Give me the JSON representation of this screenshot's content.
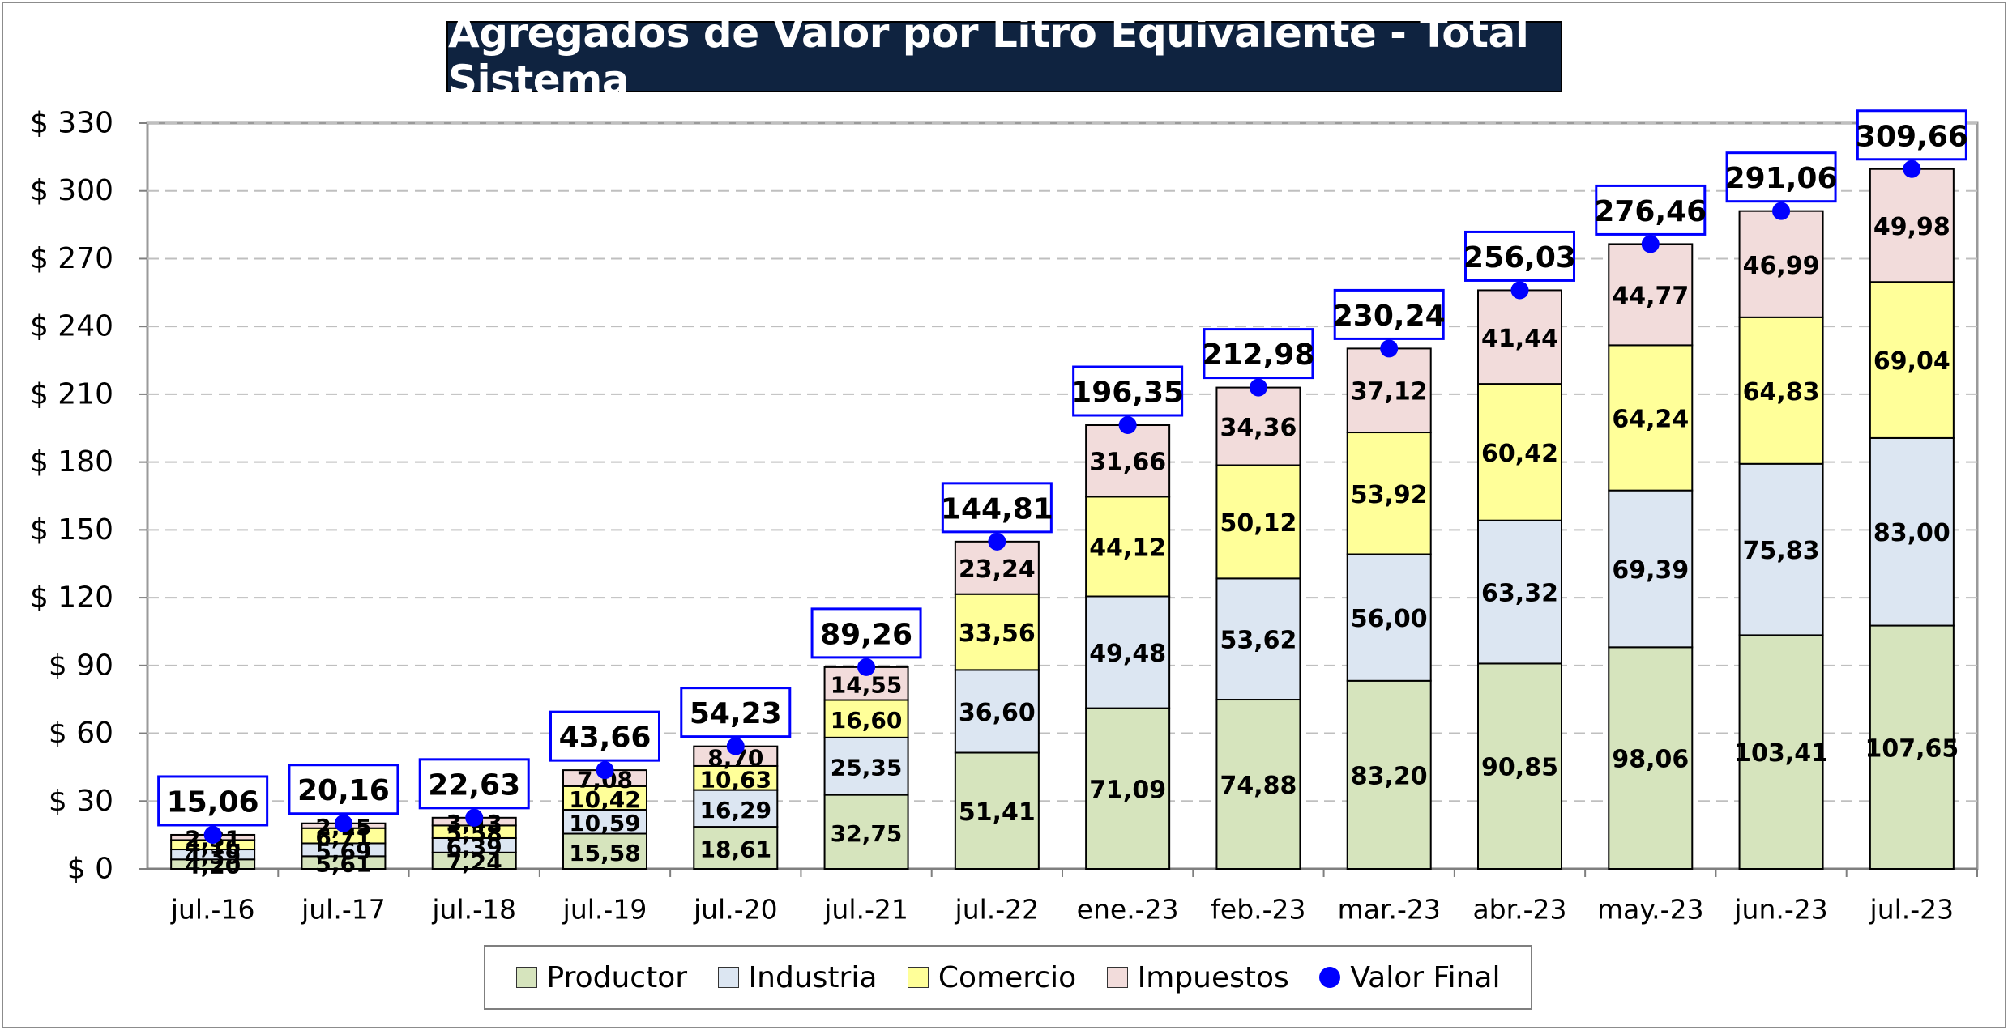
{
  "chart_data": {
    "type": "bar",
    "stacked": true,
    "title": "Agregados de Valor por Litro Equivalente - Total Sistema",
    "categories": [
      "jul.-16",
      "jul.-17",
      "jul.-18",
      "jul.-19",
      "jul.-20",
      "jul.-21",
      "jul.-22",
      "ene.-23",
      "feb.-23",
      "mar.-23",
      "abr.-23",
      "may.-23",
      "jun.-23",
      "jul.-23"
    ],
    "series": [
      {
        "name": "Productor",
        "color": "#d6e4bd",
        "values": [
          4.2,
          5.61,
          7.24,
          15.58,
          18.61,
          32.75,
          51.41,
          71.09,
          74.88,
          83.2,
          90.85,
          98.06,
          103.41,
          107.65
        ],
        "labels": [
          "4,20",
          "5,61",
          "7,24",
          "15,58",
          "18,61",
          "32,75",
          "51,41",
          "71,09",
          "74,88",
          "83,20",
          "90,85",
          "98,06",
          "103,41",
          "107,65"
        ]
      },
      {
        "name": "Industria",
        "color": "#dce6f2",
        "values": [
          4.39,
          5.69,
          6.39,
          10.59,
          16.29,
          25.35,
          36.6,
          49.48,
          53.62,
          56.0,
          63.32,
          69.39,
          75.83,
          83.0
        ],
        "labels": [
          "4,39",
          "5,69",
          "6,39",
          "10,59",
          "16,29",
          "25,35",
          "36,60",
          "49,48",
          "53,62",
          "56,00",
          "63,32",
          "69,39",
          "75,83",
          "83,00"
        ]
      },
      {
        "name": "Comercio",
        "color": "#ffff99",
        "values": [
          4.16,
          6.71,
          5.58,
          10.42,
          10.63,
          16.6,
          33.56,
          44.12,
          50.12,
          53.92,
          60.42,
          64.24,
          64.83,
          69.04
        ],
        "labels": [
          "4,16",
          "6,71",
          "5,58",
          "10,42",
          "10,63",
          "16,60",
          "33,56",
          "44,12",
          "50,12",
          "53,92",
          "60,42",
          "64,24",
          "64,83",
          "69,04"
        ]
      },
      {
        "name": "Impuestos",
        "color": "#f2dcdb",
        "values": [
          2.31,
          2.15,
          3.43,
          7.08,
          8.7,
          14.55,
          23.24,
          31.66,
          34.36,
          37.12,
          41.44,
          44.77,
          46.99,
          49.98
        ],
        "labels": [
          "2,31",
          "2,15",
          "3,43",
          "7,08",
          "8,70",
          "14,55",
          "23,24",
          "31,66",
          "34,36",
          "37,12",
          "41,44",
          "44,77",
          "46,99",
          "49,98"
        ]
      }
    ],
    "line_series": {
      "name": "Valor Final",
      "color": "#0000ff",
      "values": [
        15.06,
        20.16,
        22.63,
        43.66,
        54.23,
        89.26,
        144.81,
        196.35,
        212.98,
        230.24,
        256.03,
        276.46,
        291.06,
        309.66
      ],
      "labels": [
        "15,06",
        "20,16",
        "22,63",
        "43,66",
        "54,23",
        "89,26",
        "144,81",
        "196,35",
        "212,98",
        "230,24",
        "256,03",
        "276,46",
        "291,06",
        "309,66"
      ]
    },
    "ylim": [
      0,
      330
    ],
    "yticks": [
      0,
      30,
      60,
      90,
      120,
      150,
      180,
      210,
      240,
      270,
      300,
      330
    ],
    "ytick_labels": [
      "$ 0",
      "$ 30",
      "$ 60",
      "$ 90",
      "$ 120",
      "$ 150",
      "$ 180",
      "$ 210",
      "$ 240",
      "$ 270",
      "$ 300",
      "$ 330"
    ],
    "grid": true,
    "legend_position": "bottom"
  }
}
